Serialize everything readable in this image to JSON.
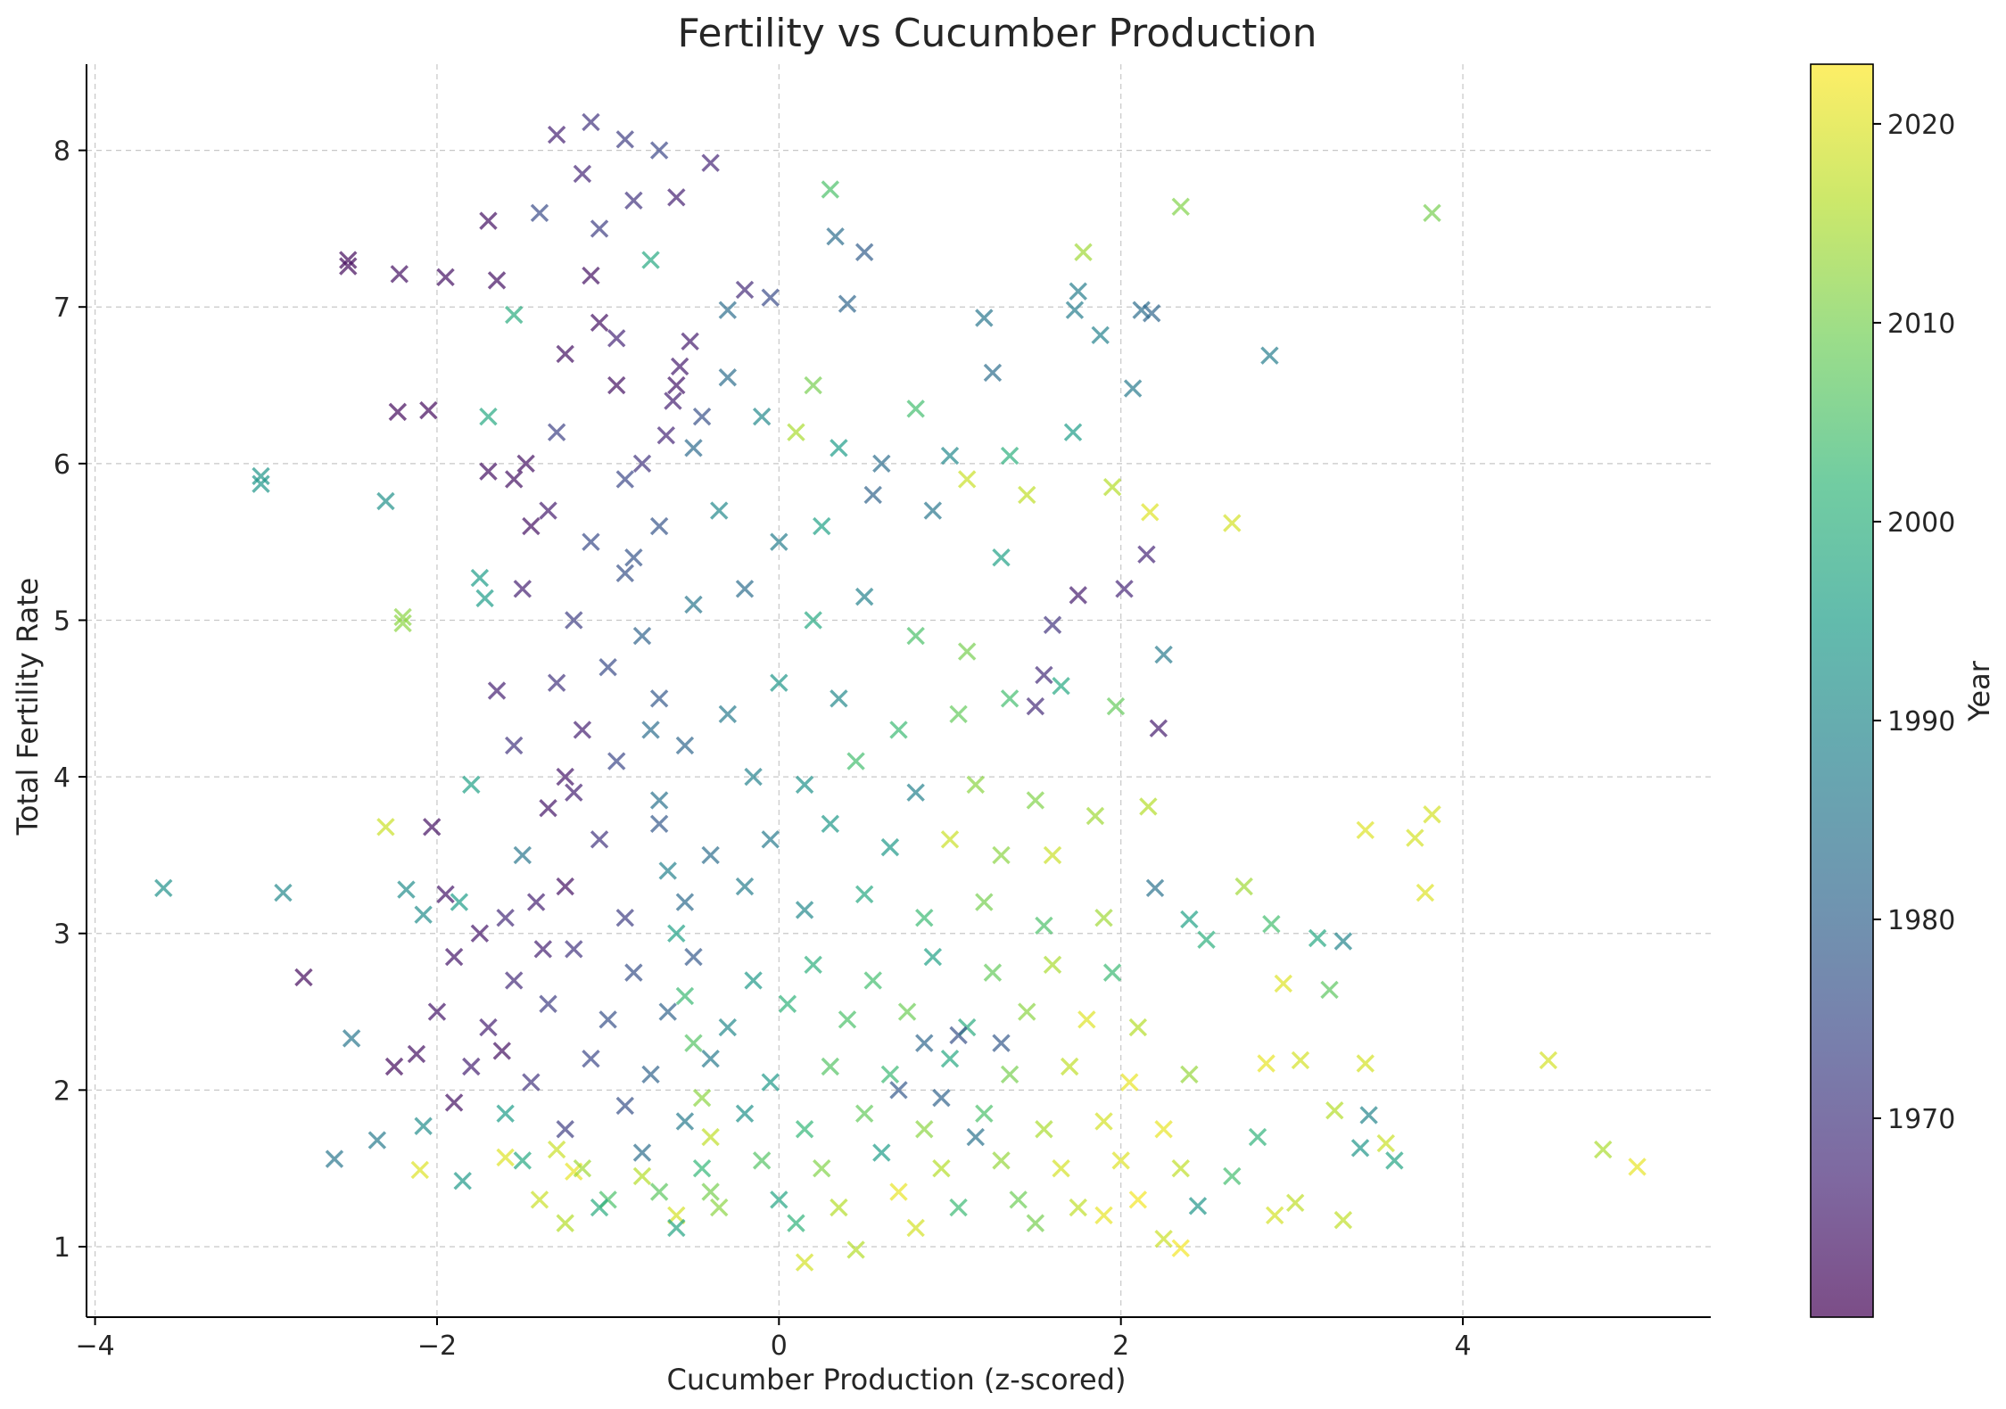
{
  "chart_data": {
    "type": "scatter",
    "title": "Fertility vs Cucumber Production",
    "xlabel": "Cucumber Production (z-scored)",
    "ylabel": "Total Fertility Rate",
    "xlim": [
      -4.05,
      5.45
    ],
    "ylim": [
      0.55,
      8.55
    ],
    "xticks": [
      -4,
      -2,
      0,
      2,
      4
    ],
    "yticks": [
      1,
      2,
      3,
      4,
      5,
      6,
      7,
      8
    ],
    "xtick_labels": [
      "−4",
      "−2",
      "0",
      "2",
      "4"
    ],
    "ytick_labels": [
      "1",
      "2",
      "3",
      "4",
      "5",
      "6",
      "7",
      "8"
    ],
    "grid": true,
    "marker": "x",
    "alpha": 0.7,
    "colormap": "viridis",
    "color_by": "Year",
    "colorbar": {
      "label": "Year",
      "range": [
        1960,
        2023
      ],
      "ticks": [
        1970,
        1980,
        1990,
        2000,
        2010,
        2020
      ],
      "tick_labels": [
        "1970",
        "1980",
        "1990",
        "2000",
        "2010",
        "2020"
      ],
      "colors": [
        "#440154",
        "#482878",
        "#3e4989",
        "#31688e",
        "#26828e",
        "#1f9e89",
        "#35b779",
        "#6ece58",
        "#b5de2b",
        "#fde725"
      ]
    },
    "points": [
      [
        -3.6,
        3.29,
        1992
      ],
      [
        -3.03,
        5.92,
        1993
      ],
      [
        -3.03,
        5.87,
        1993
      ],
      [
        -2.9,
        3.26,
        1990
      ],
      [
        -2.78,
        2.72,
        1962
      ],
      [
        -2.6,
        1.56,
        1985
      ],
      [
        -2.5,
        2.33,
        1985
      ],
      [
        -2.52,
        7.3,
        1962
      ],
      [
        -2.52,
        7.26,
        1962
      ],
      [
        -2.35,
        1.68,
        1986
      ],
      [
        -2.3,
        3.68,
        2018
      ],
      [
        -2.3,
        5.76,
        1992
      ],
      [
        -2.25,
        2.15,
        1962
      ],
      [
        -2.23,
        6.33,
        1962
      ],
      [
        -2.22,
        7.21,
        1963
      ],
      [
        -2.2,
        5.02,
        2012
      ],
      [
        -2.2,
        4.98,
        2012
      ],
      [
        -2.18,
        3.28,
        1991
      ],
      [
        -2.12,
        2.23,
        1963
      ],
      [
        -2.08,
        3.12,
        1991
      ],
      [
        -2.08,
        1.77,
        1991
      ],
      [
        -2.05,
        6.34,
        1962
      ],
      [
        -2.03,
        3.68,
        1963
      ],
      [
        -2.1,
        1.49,
        2020
      ],
      [
        -1.95,
        7.19,
        1963
      ],
      [
        -1.9,
        1.92,
        1963
      ],
      [
        -1.87,
        3.2,
        1995
      ],
      [
        -1.85,
        1.42,
        1994
      ],
      [
        -1.8,
        3.95,
        1996
      ],
      [
        -1.75,
        5.27,
        1995
      ],
      [
        -1.72,
        5.14,
        1995
      ],
      [
        -1.7,
        6.3,
        1998
      ],
      [
        -1.65,
        7.17,
        1963
      ],
      [
        -1.6,
        1.57,
        2020
      ],
      [
        -1.55,
        6.95,
        1999
      ],
      [
        -1.5,
        3.5,
        1985
      ],
      [
        -1.3,
        1.62,
        2018
      ],
      [
        -1.2,
        1.48,
        2021
      ],
      [
        -1.0,
        1.3,
        2005
      ],
      [
        -0.8,
        1.45,
        2016
      ],
      [
        -0.6,
        1.2,
        2019
      ],
      [
        -0.4,
        1.35,
        2010
      ],
      [
        -0.3,
        6.98,
        1983
      ],
      [
        -0.2,
        7.11,
        1968
      ],
      [
        -0.05,
        7.06,
        1975
      ],
      [
        0.2,
        6.5,
        2010
      ],
      [
        0.3,
        7.75,
        2005
      ],
      [
        0.33,
        7.45,
        1983
      ],
      [
        0.4,
        7.02,
        1981
      ],
      [
        0.5,
        7.35,
        1979
      ],
      [
        0.8,
        6.35,
        2004
      ],
      [
        1.0,
        6.05,
        1990
      ],
      [
        1.1,
        5.9,
        2018
      ],
      [
        1.2,
        6.93,
        1985
      ],
      [
        1.25,
        6.58,
        1983
      ],
      [
        1.35,
        6.05,
        2000
      ],
      [
        1.45,
        5.8,
        2017
      ],
      [
        1.5,
        4.45,
        1968
      ],
      [
        1.55,
        4.65,
        1968
      ],
      [
        1.6,
        4.97,
        1970
      ],
      [
        1.65,
        4.58,
        1998
      ],
      [
        1.75,
        7.1,
        1987
      ],
      [
        1.73,
        6.98,
        1987
      ],
      [
        1.78,
        7.35,
        2014
      ],
      [
        1.72,
        6.2,
        1995
      ],
      [
        1.75,
        5.16,
        1965
      ],
      [
        1.88,
        6.82,
        1988
      ],
      [
        1.95,
        5.85,
        2016
      ],
      [
        1.97,
        4.45,
        2008
      ],
      [
        2.02,
        5.2,
        1967
      ],
      [
        2.07,
        6.48,
        1986
      ],
      [
        2.12,
        6.98,
        1983
      ],
      [
        2.18,
        6.96,
        1981
      ],
      [
        2.15,
        5.42,
        1967
      ],
      [
        2.17,
        5.69,
        2020
      ],
      [
        2.22,
        4.31,
        1965
      ],
      [
        2.25,
        4.78,
        1986
      ],
      [
        2.35,
        7.64,
        2011
      ],
      [
        2.65,
        5.62,
        2019
      ],
      [
        2.87,
        6.69,
        1987
      ],
      [
        2.16,
        3.81,
        2016
      ],
      [
        2.2,
        3.29,
        1984
      ],
      [
        2.4,
        3.09,
        1996
      ],
      [
        2.5,
        2.96,
        2000
      ],
      [
        2.72,
        3.3,
        2014
      ],
      [
        2.88,
        3.06,
        2004
      ],
      [
        2.95,
        2.68,
        2020
      ],
      [
        3.15,
        2.97,
        1998
      ],
      [
        3.3,
        2.95,
        1989
      ],
      [
        3.22,
        2.64,
        2007
      ],
      [
        2.85,
        2.17,
        2021
      ],
      [
        3.05,
        2.19,
        2019
      ],
      [
        3.25,
        1.87,
        2016
      ],
      [
        3.43,
        2.17,
        2019
      ],
      [
        3.45,
        1.84,
        1989
      ],
      [
        3.4,
        1.63,
        1993
      ],
      [
        3.6,
        1.55,
        1997
      ],
      [
        3.55,
        1.66,
        2018
      ],
      [
        2.9,
        1.2,
        2019
      ],
      [
        3.02,
        1.28,
        2017
      ],
      [
        3.3,
        1.17,
        2017
      ],
      [
        3.43,
        3.66,
        2020
      ],
      [
        3.72,
        3.61,
        2019
      ],
      [
        3.82,
        3.76,
        2019
      ],
      [
        3.78,
        3.26,
        2020
      ],
      [
        3.82,
        7.6,
        2010
      ],
      [
        4.5,
        2.19,
        2019
      ],
      [
        4.82,
        1.62,
        2015
      ],
      [
        5.02,
        1.51,
        2021
      ],
      [
        2.8,
        1.7,
        2001
      ],
      [
        2.65,
        1.45,
        2004
      ],
      [
        2.45,
        1.26,
        1993
      ],
      [
        2.25,
        1.05,
        2018
      ],
      [
        2.35,
        0.99,
        2022
      ],
      [
        0.15,
        0.9,
        2019
      ],
      [
        0.45,
        0.98,
        2016
      ],
      [
        -1.3,
        8.1,
        1966
      ],
      [
        -1.1,
        8.18,
        1970
      ],
      [
        -0.9,
        8.07,
        1972
      ],
      [
        -0.7,
        8.0,
        1974
      ],
      [
        -0.4,
        7.92,
        1967
      ],
      [
        -0.6,
        7.7,
        1966
      ],
      [
        -1.7,
        7.55,
        1963
      ],
      [
        -1.4,
        7.6,
        1975
      ],
      [
        -1.05,
        7.5,
        1972
      ],
      [
        -0.85,
        7.68,
        1970
      ],
      [
        -0.75,
        7.3,
        1998
      ],
      [
        -1.25,
        6.7,
        1963
      ],
      [
        -0.95,
        6.8,
        1967
      ],
      [
        -0.6,
        6.5,
        1964
      ],
      [
        -0.45,
        6.3,
        1976
      ],
      [
        -0.3,
        6.55,
        1983
      ],
      [
        -1.3,
        6.2,
        1973
      ],
      [
        -0.8,
        6.0,
        1970
      ],
      [
        -0.5,
        6.1,
        1982
      ],
      [
        -0.1,
        6.3,
        1990
      ],
      [
        0.1,
        6.2,
        2015
      ],
      [
        0.35,
        6.1,
        1995
      ],
      [
        0.6,
        6.0,
        1983
      ],
      [
        -1.55,
        5.9,
        1963
      ],
      [
        -1.7,
        5.95,
        1963
      ],
      [
        -1.45,
        5.6,
        1963
      ],
      [
        -1.1,
        5.5,
        1975
      ],
      [
        -0.7,
        5.6,
        1977
      ],
      [
        -0.35,
        5.7,
        1990
      ],
      [
        0.0,
        5.5,
        1987
      ],
      [
        0.25,
        5.6,
        1996
      ],
      [
        0.55,
        5.8,
        1980
      ],
      [
        0.9,
        5.7,
        1985
      ],
      [
        1.3,
        5.4,
        1996
      ],
      [
        -1.5,
        5.2,
        1966
      ],
      [
        -1.2,
        5.0,
        1972
      ],
      [
        -0.9,
        5.3,
        1976
      ],
      [
        -0.5,
        5.1,
        1985
      ],
      [
        -0.2,
        5.2,
        1983
      ],
      [
        0.2,
        5.0,
        1998
      ],
      [
        0.5,
        5.15,
        1988
      ],
      [
        0.8,
        4.9,
        2005
      ],
      [
        1.1,
        4.8,
        2010
      ],
      [
        -1.65,
        4.55,
        1966
      ],
      [
        -1.3,
        4.6,
        1970
      ],
      [
        -1.0,
        4.7,
        1975
      ],
      [
        -0.7,
        4.5,
        1978
      ],
      [
        -0.3,
        4.4,
        1986
      ],
      [
        0.0,
        4.6,
        1993
      ],
      [
        0.35,
        4.5,
        1990
      ],
      [
        0.7,
        4.3,
        2003
      ],
      [
        1.05,
        4.4,
        2008
      ],
      [
        1.35,
        4.5,
        2004
      ],
      [
        -1.55,
        4.2,
        1970
      ],
      [
        -1.25,
        4.0,
        1964
      ],
      [
        -0.95,
        4.1,
        1974
      ],
      [
        -0.55,
        4.2,
        1981
      ],
      [
        -0.15,
        4.0,
        1988
      ],
      [
        0.15,
        3.95,
        1992
      ],
      [
        0.45,
        4.1,
        2004
      ],
      [
        0.8,
        3.9,
        1988
      ],
      [
        1.15,
        3.95,
        2012
      ],
      [
        1.5,
        3.85,
        2011
      ],
      [
        1.85,
        3.75,
        2014
      ],
      [
        -1.35,
        3.8,
        1964
      ],
      [
        -1.05,
        3.6,
        1970
      ],
      [
        -0.7,
        3.7,
        1978
      ],
      [
        -0.4,
        3.5,
        1983
      ],
      [
        -0.05,
        3.6,
        1986
      ],
      [
        0.3,
        3.7,
        1994
      ],
      [
        0.65,
        3.55,
        1994
      ],
      [
        1.0,
        3.6,
        2018
      ],
      [
        1.3,
        3.5,
        2012
      ],
      [
        1.6,
        3.5,
        2018
      ],
      [
        -1.95,
        3.25,
        1964
      ],
      [
        -1.6,
        3.1,
        1968
      ],
      [
        -1.25,
        3.3,
        1963
      ],
      [
        -0.9,
        3.1,
        1972
      ],
      [
        -0.55,
        3.2,
        1982
      ],
      [
        -0.2,
        3.3,
        1987
      ],
      [
        0.15,
        3.15,
        1990
      ],
      [
        0.5,
        3.25,
        1998
      ],
      [
        0.85,
        3.1,
        2003
      ],
      [
        1.2,
        3.2,
        2010
      ],
      [
        1.55,
        3.05,
        2005
      ],
      [
        1.9,
        3.1,
        2014
      ],
      [
        -1.9,
        2.85,
        1964
      ],
      [
        -1.55,
        2.7,
        1968
      ],
      [
        -1.2,
        2.9,
        1970
      ],
      [
        -0.85,
        2.75,
        1976
      ],
      [
        -0.5,
        2.85,
        1978
      ],
      [
        -0.15,
        2.7,
        1994
      ],
      [
        0.2,
        2.8,
        2000
      ],
      [
        0.55,
        2.7,
        2004
      ],
      [
        0.9,
        2.85,
        1996
      ],
      [
        1.25,
        2.75,
        2008
      ],
      [
        1.6,
        2.8,
        2015
      ],
      [
        1.95,
        2.75,
        2003
      ],
      [
        -2.0,
        2.5,
        1964
      ],
      [
        -1.7,
        2.4,
        1966
      ],
      [
        -1.35,
        2.55,
        1972
      ],
      [
        -1.0,
        2.45,
        1976
      ],
      [
        -0.65,
        2.5,
        1980
      ],
      [
        -0.3,
        2.4,
        1990
      ],
      [
        0.05,
        2.55,
        2001
      ],
      [
        0.4,
        2.45,
        2005
      ],
      [
        0.75,
        2.5,
        2009
      ],
      [
        1.1,
        2.4,
        1999
      ],
      [
        1.45,
        2.5,
        2012
      ],
      [
        1.8,
        2.45,
        2020
      ],
      [
        2.1,
        2.4,
        2016
      ],
      [
        -1.8,
        2.15,
        1966
      ],
      [
        -1.45,
        2.05,
        1970
      ],
      [
        -1.1,
        2.2,
        1974
      ],
      [
        -0.75,
        2.1,
        1980
      ],
      [
        -0.4,
        2.2,
        1986
      ],
      [
        -0.05,
        2.05,
        1994
      ],
      [
        0.3,
        2.15,
        2006
      ],
      [
        0.65,
        2.1,
        2003
      ],
      [
        1.0,
        2.2,
        1998
      ],
      [
        1.35,
        2.1,
        2010
      ],
      [
        1.7,
        2.15,
        2017
      ],
      [
        2.05,
        2.05,
        2021
      ],
      [
        2.4,
        2.1,
        2013
      ],
      [
        -1.6,
        1.85,
        1995
      ],
      [
        -1.25,
        1.75,
        1972
      ],
      [
        -0.9,
        1.9,
        1976
      ],
      [
        -0.55,
        1.8,
        1986
      ],
      [
        -0.2,
        1.85,
        1992
      ],
      [
        0.15,
        1.75,
        2002
      ],
      [
        0.5,
        1.85,
        2008
      ],
      [
        0.85,
        1.75,
        2012
      ],
      [
        1.2,
        1.85,
        2005
      ],
      [
        1.55,
        1.75,
        2015
      ],
      [
        1.9,
        1.8,
        2019
      ],
      [
        2.25,
        1.75,
        2021
      ],
      [
        -1.5,
        1.55,
        1998
      ],
      [
        -1.15,
        1.5,
        2014
      ],
      [
        -0.8,
        1.6,
        1983
      ],
      [
        -0.45,
        1.5,
        2002
      ],
      [
        -0.1,
        1.55,
        2006
      ],
      [
        0.25,
        1.5,
        2011
      ],
      [
        0.6,
        1.6,
        1995
      ],
      [
        0.95,
        1.5,
        2016
      ],
      [
        1.3,
        1.55,
        2013
      ],
      [
        1.65,
        1.5,
        2019
      ],
      [
        2.0,
        1.55,
        2020
      ],
      [
        2.35,
        1.5,
        2017
      ],
      [
        -1.4,
        1.3,
        2018
      ],
      [
        -1.05,
        1.25,
        1999
      ],
      [
        -0.7,
        1.35,
        2007
      ],
      [
        -0.35,
        1.25,
        2012
      ],
      [
        0.0,
        1.3,
        1997
      ],
      [
        0.35,
        1.25,
        2016
      ],
      [
        0.7,
        1.35,
        2021
      ],
      [
        1.05,
        1.25,
        2003
      ],
      [
        1.4,
        1.3,
        2009
      ],
      [
        1.75,
        1.25,
        2017
      ],
      [
        2.1,
        1.3,
        2022
      ],
      [
        -1.25,
        1.15,
        2016
      ],
      [
        -0.6,
        1.12,
        1997
      ],
      [
        0.1,
        1.15,
        2001
      ],
      [
        0.8,
        1.12,
        2019
      ],
      [
        1.5,
        1.15,
        2010
      ],
      [
        1.9,
        1.2,
        2021
      ],
      [
        -1.15,
        7.85,
        1967
      ],
      [
        -1.1,
        7.2,
        1963
      ],
      [
        -1.05,
        6.9,
        1963
      ],
      [
        -0.95,
        6.5,
        1963
      ],
      [
        -0.9,
        5.9,
        1974
      ],
      [
        -0.85,
        5.4,
        1977
      ],
      [
        -0.8,
        4.9,
        1980
      ],
      [
        -0.75,
        4.3,
        1983
      ],
      [
        -0.7,
        3.85,
        1984
      ],
      [
        -0.65,
        3.4,
        1988
      ],
      [
        -0.6,
        3.0,
        1996
      ],
      [
        -0.55,
        2.6,
        2003
      ],
      [
        -0.5,
        2.3,
        2006
      ],
      [
        -0.45,
        1.95,
        2012
      ],
      [
        -0.4,
        1.7,
        2017
      ],
      [
        -0.52,
        6.78,
        1965
      ],
      [
        -0.58,
        6.62,
        1965
      ],
      [
        -0.62,
        6.4,
        1966
      ],
      [
        -0.66,
        6.18,
        1967
      ],
      [
        -1.75,
        3.0,
        1964
      ],
      [
        -1.62,
        2.25,
        1963
      ],
      [
        -1.42,
        3.2,
        1966
      ],
      [
        -1.38,
        2.9,
        1966
      ],
      [
        -1.48,
        6.0,
        1963
      ],
      [
        -1.35,
        5.7,
        1965
      ],
      [
        -1.2,
        3.9,
        1966
      ],
      [
        -1.15,
        4.3,
        1966
      ],
      [
        0.85,
        2.3,
        1981
      ],
      [
        1.05,
        2.35,
        1976
      ],
      [
        1.3,
        2.3,
        1978
      ],
      [
        0.7,
        2.0,
        1978
      ],
      [
        0.95,
        1.95,
        1980
      ],
      [
        1.15,
        1.7,
        1984
      ]
    ]
  }
}
